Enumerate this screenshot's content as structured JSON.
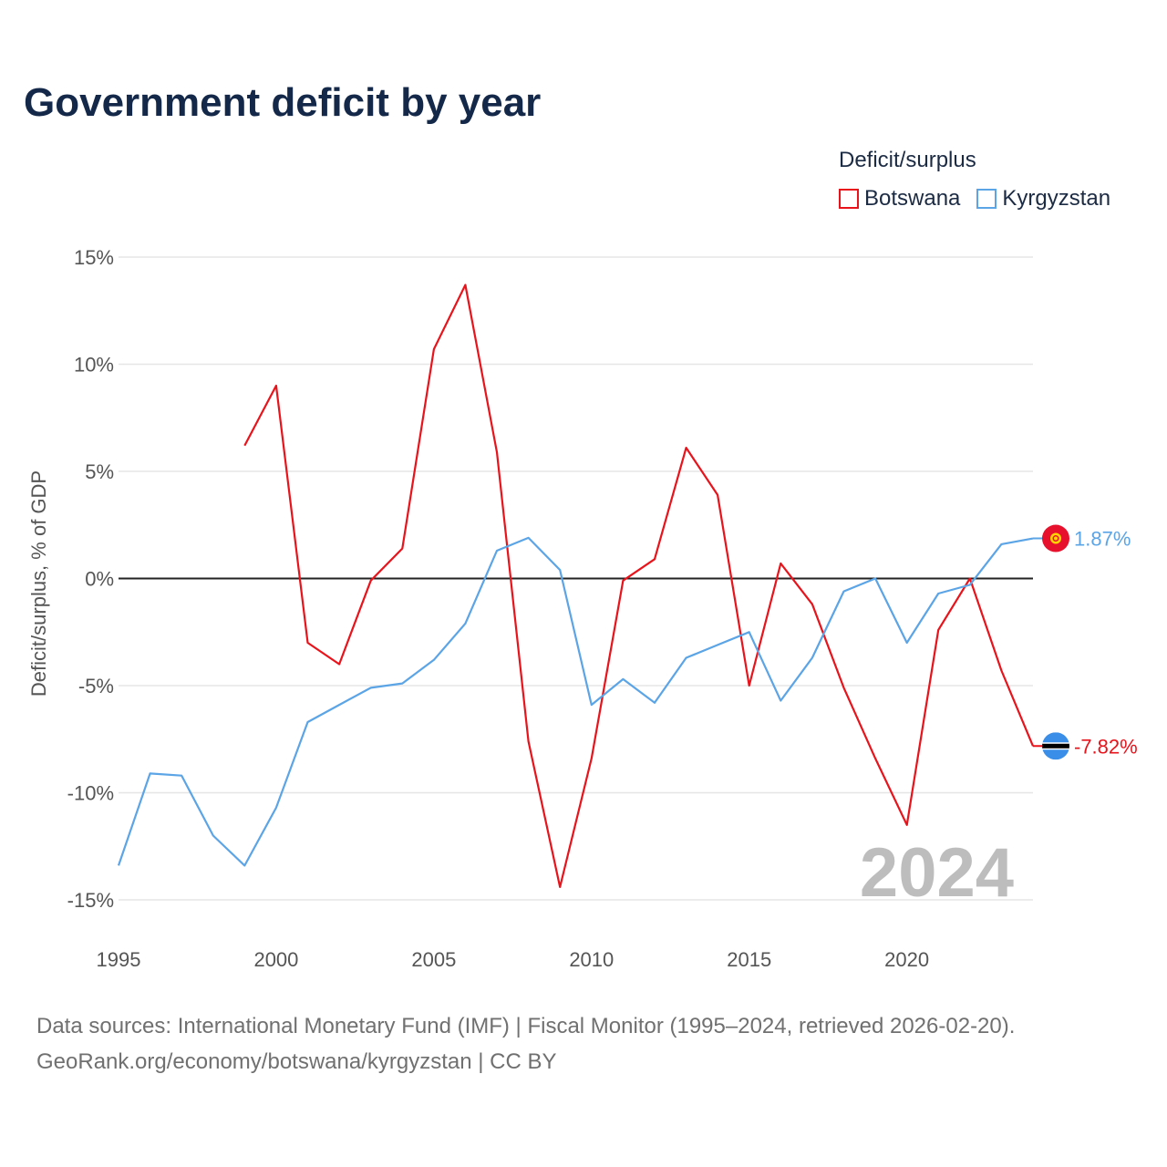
{
  "title": "Government deficit by year",
  "legend": {
    "title": "Deficit/surplus",
    "items": [
      {
        "label": "Botswana",
        "color": "#e8131b"
      },
      {
        "label": "Kyrgyzstan",
        "color": "#5ba4e6"
      }
    ]
  },
  "sources": {
    "line1": "Data sources: International Monetary Fund (IMF) | Fiscal Monitor (1995–2024, retrieved 2026-02-20).",
    "line2": "GeoRank.org/economy/botswana/kyrgyzstan | CC BY"
  },
  "watermark_year": "2024",
  "chart_data": {
    "type": "line",
    "title": "Government deficit by year",
    "xlabel": "",
    "ylabel": "Deficit/surplus, % of GDP",
    "xlim": [
      1995,
      2024
    ],
    "ylim": [
      -15,
      15
    ],
    "x_ticks": [
      1995,
      2000,
      2005,
      2010,
      2015,
      2020
    ],
    "x_tick_labels": [
      "1995",
      "2000",
      "2005",
      "2010",
      "2015",
      "2020"
    ],
    "y_ticks": [
      15,
      10,
      5,
      0,
      -5,
      -10,
      -15
    ],
    "y_tick_labels": [
      "15%",
      "10%",
      "5%",
      "0%",
      "-5%",
      "-10%",
      "-15%"
    ],
    "zero_line": true,
    "grid": true,
    "legend_position": "top-right",
    "series": [
      {
        "name": "Botswana",
        "color": "#e8131b",
        "end_label": "-7.82%",
        "flag": "botswana",
        "points": [
          [
            1999,
            6.2
          ],
          [
            2000,
            9.0
          ],
          [
            2001,
            -3.0
          ],
          [
            2002,
            -4.0
          ],
          [
            2003,
            -0.1
          ],
          [
            2004,
            1.4
          ],
          [
            2005,
            10.7
          ],
          [
            2006,
            13.7
          ],
          [
            2007,
            5.9
          ],
          [
            2008,
            -7.6
          ],
          [
            2009,
            -14.4
          ],
          [
            2010,
            -8.4
          ],
          [
            2011,
            -0.1
          ],
          [
            2012,
            0.9
          ],
          [
            2013,
            6.1
          ],
          [
            2014,
            3.9
          ],
          [
            2015,
            -5.0
          ],
          [
            2016,
            0.7
          ],
          [
            2017,
            -1.2
          ],
          [
            2018,
            -5.1
          ],
          [
            2019,
            -8.4
          ],
          [
            2020,
            -11.5
          ],
          [
            2021,
            -2.4
          ],
          [
            2022,
            0.0
          ],
          [
            2023,
            -4.3
          ],
          [
            2024,
            -7.82
          ]
        ]
      },
      {
        "name": "Kyrgyzstan",
        "color": "#5ba4e6",
        "end_label": "1.87%",
        "flag": "kyrgyzstan",
        "points": [
          [
            1995,
            -13.4
          ],
          [
            1996,
            -9.1
          ],
          [
            1997,
            -9.2
          ],
          [
            1998,
            -12.0
          ],
          [
            1999,
            -13.4
          ],
          [
            2000,
            -10.7
          ],
          [
            2001,
            -6.7
          ],
          [
            2002,
            -5.9
          ],
          [
            2003,
            -5.1
          ],
          [
            2004,
            -4.9
          ],
          [
            2005,
            -3.8
          ],
          [
            2006,
            -2.1
          ],
          [
            2007,
            1.3
          ],
          [
            2008,
            1.9
          ],
          [
            2009,
            0.4
          ],
          [
            2010,
            -5.9
          ],
          [
            2011,
            -4.7
          ],
          [
            2012,
            -5.8
          ],
          [
            2013,
            -3.7
          ],
          [
            2014,
            -3.1
          ],
          [
            2015,
            -2.5
          ],
          [
            2016,
            -5.7
          ],
          [
            2017,
            -3.7
          ],
          [
            2018,
            -0.6
          ],
          [
            2019,
            0.0
          ],
          [
            2020,
            -3.0
          ],
          [
            2021,
            -0.7
          ],
          [
            2022,
            -0.3
          ],
          [
            2023,
            1.6
          ],
          [
            2024,
            1.87
          ]
        ]
      }
    ]
  }
}
